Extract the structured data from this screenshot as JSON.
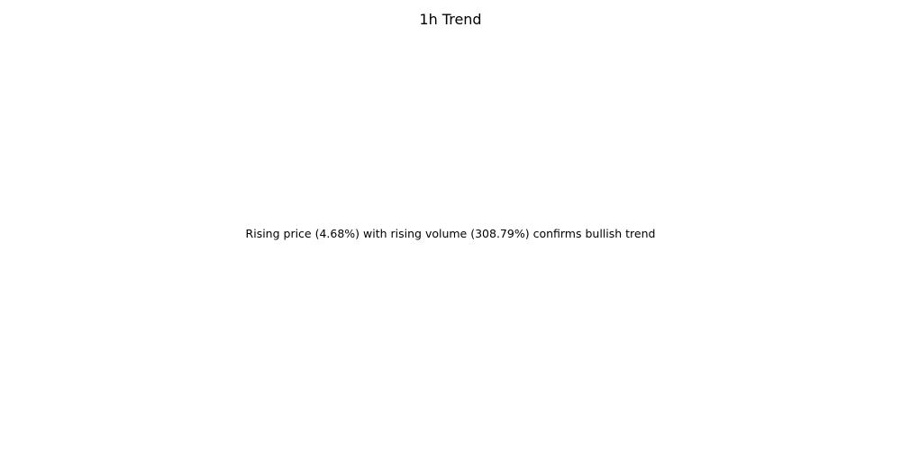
{
  "figure": {
    "title": "1h Trend",
    "message": "Rising price (4.68%) with rising volume (308.79%) confirms bullish trend"
  }
}
